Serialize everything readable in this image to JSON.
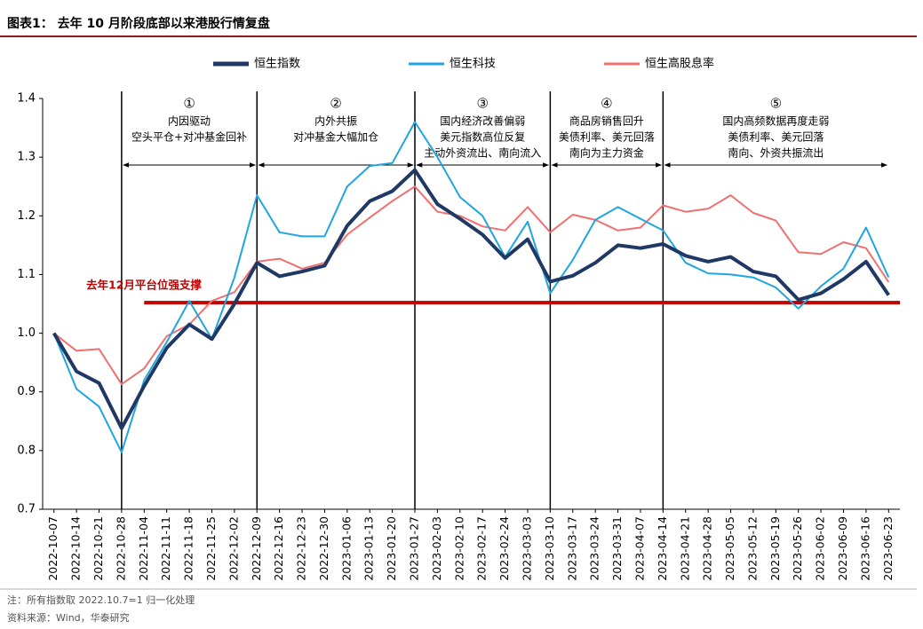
{
  "chart_data": {
    "type": "line",
    "title": "图表1： 去年 10 月阶段底部以来港股行情复盘",
    "note": "注：所有指数取 2022.10.7=1 归一化处理",
    "source": "资料来源：Wind，华泰研究",
    "categories": [
      "2022-10-07",
      "2022-10-14",
      "2022-10-21",
      "2022-10-28",
      "2022-11-04",
      "2022-11-11",
      "2022-11-18",
      "2022-11-25",
      "2022-12-02",
      "2022-12-09",
      "2022-12-16",
      "2022-12-23",
      "2022-12-30",
      "2023-01-06",
      "2023-01-13",
      "2023-01-20",
      "2023-01-27",
      "2023-02-03",
      "2023-02-10",
      "2023-02-17",
      "2023-02-24",
      "2023-03-03",
      "2023-03-10",
      "2023-03-17",
      "2023-03-24",
      "2023-03-31",
      "2023-04-07",
      "2023-04-14",
      "2023-04-21",
      "2023-04-28",
      "2023-05-05",
      "2023-05-12",
      "2023-05-19",
      "2023-05-26",
      "2023-06-02",
      "2023-06-09",
      "2023-06-16",
      "2023-06-23"
    ],
    "series": [
      {
        "name": "恒生指数",
        "color": "#1f3864",
        "width": 4,
        "values": [
          1.0,
          0.935,
          0.915,
          0.838,
          0.91,
          0.975,
          1.015,
          0.99,
          1.05,
          1.12,
          1.097,
          1.105,
          1.115,
          1.183,
          1.225,
          1.242,
          1.278,
          1.22,
          1.195,
          1.168,
          1.128,
          1.16,
          1.088,
          1.098,
          1.12,
          1.15,
          1.145,
          1.152,
          1.132,
          1.122,
          1.13,
          1.105,
          1.097,
          1.057,
          1.068,
          1.092,
          1.122,
          1.065
        ]
      },
      {
        "name": "恒生科技",
        "color": "#1ea6e0",
        "width": 2,
        "values": [
          1.0,
          0.905,
          0.875,
          0.797,
          0.92,
          0.985,
          1.055,
          0.99,
          1.095,
          1.235,
          1.172,
          1.165,
          1.165,
          1.25,
          1.285,
          1.29,
          1.36,
          1.3,
          1.232,
          1.2,
          1.13,
          1.19,
          1.068,
          1.125,
          1.193,
          1.215,
          1.195,
          1.175,
          1.12,
          1.102,
          1.1,
          1.095,
          1.078,
          1.042,
          1.08,
          1.11,
          1.18,
          1.095
        ]
      },
      {
        "name": "恒生高股息率",
        "color": "#f07070",
        "width": 2,
        "values": [
          1.0,
          0.97,
          0.973,
          0.913,
          0.94,
          0.995,
          1.015,
          1.055,
          1.07,
          1.122,
          1.127,
          1.11,
          1.12,
          1.168,
          1.197,
          1.225,
          1.25,
          1.207,
          1.2,
          1.182,
          1.175,
          1.215,
          1.172,
          1.202,
          1.193,
          1.175,
          1.18,
          1.218,
          1.207,
          1.212,
          1.235,
          1.205,
          1.192,
          1.138,
          1.135,
          1.155,
          1.145,
          1.087
        ]
      }
    ],
    "ylim": [
      0.7,
      1.4
    ],
    "yticks": [
      0.7,
      0.8,
      0.9,
      {
        "value": 1.0,
        "label": "1.0"
      },
      1.1,
      1.2,
      1.3,
      1.4
    ],
    "support_line": {
      "label": "去年12月平台位强支撑",
      "value": 1.052,
      "color": "#c00000",
      "start": "2022-11-04"
    },
    "phases": [
      {
        "marker": "①",
        "lines": [
          "内因驱动",
          "空头平仓+对冲基金回补"
        ],
        "start": "2022-10-28",
        "end": "2022-12-09"
      },
      {
        "marker": "②",
        "lines": [
          "内外共振",
          "对冲基金大幅加仓"
        ],
        "start": "2022-12-09",
        "end": "2023-01-27"
      },
      {
        "marker": "③",
        "lines": [
          "国内经济改善偏弱",
          "美元指数高位反复",
          "主动外资流出、南向流入"
        ],
        "start": "2023-01-27",
        "end": "2023-03-10"
      },
      {
        "marker": "④",
        "lines": [
          "商品房销售回升",
          "美债利率、美元回落",
          "南向为主力资金"
        ],
        "start": "2023-03-10",
        "end": "2023-04-14"
      },
      {
        "marker": "⑤",
        "lines": [
          "国内高频数据再度走弱",
          "美债利率、美元回落",
          "南向、外资共振流出"
        ],
        "start": "2023-04-14",
        "end": "2023-06-23"
      }
    ]
  }
}
